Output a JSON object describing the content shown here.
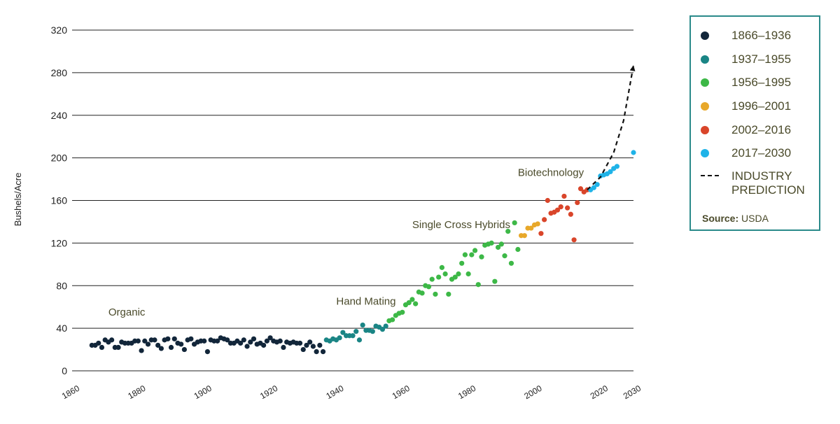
{
  "chart_data": {
    "type": "scatter",
    "ylabel": "Bushels/Acre",
    "xlabel": "",
    "xlim": [
      1860,
      2030
    ],
    "ylim": [
      0,
      320
    ],
    "x_ticks": [
      "1860",
      "1880",
      "1900",
      "1920",
      "1940",
      "1960",
      "1980",
      "2000",
      "2020",
      "2030"
    ],
    "y_ticks": [
      "0",
      "40",
      "80",
      "120",
      "160",
      "200",
      "240",
      "280",
      "320"
    ],
    "grid": "horizontal",
    "legend_position": "right",
    "source_label": "Source:",
    "source_value": "USDA",
    "annotations": [
      {
        "text": "Organic",
        "x": 1871,
        "y": 52
      },
      {
        "text": "Hand Mating",
        "x": 1940,
        "y": 62
      },
      {
        "text": "Single Cross Hybrids",
        "x": 1963,
        "y": 134
      },
      {
        "text": "Biotechnology",
        "x": 1995,
        "y": 183
      }
    ],
    "series": [
      {
        "name": "1866–1936",
        "color": "#12263a",
        "x": [
          1866,
          1867,
          1868,
          1869,
          1870,
          1871,
          1872,
          1873,
          1874,
          1875,
          1876,
          1877,
          1878,
          1879,
          1880,
          1881,
          1882,
          1883,
          1884,
          1885,
          1886,
          1887,
          1888,
          1889,
          1890,
          1891,
          1892,
          1893,
          1894,
          1895,
          1896,
          1897,
          1898,
          1899,
          1900,
          1901,
          1902,
          1903,
          1904,
          1905,
          1906,
          1907,
          1908,
          1909,
          1910,
          1911,
          1912,
          1913,
          1914,
          1915,
          1916,
          1917,
          1918,
          1919,
          1920,
          1921,
          1922,
          1923,
          1924,
          1925,
          1926,
          1927,
          1928,
          1929,
          1930,
          1931,
          1932,
          1933,
          1934,
          1935,
          1936
        ],
        "y": [
          24,
          24,
          26,
          22,
          29,
          27,
          29,
          22,
          22,
          27,
          26,
          26,
          26,
          28,
          28,
          19,
          28,
          25,
          29,
          29,
          24,
          21,
          29,
          30,
          22,
          30,
          26,
          25,
          20,
          29,
          30,
          25,
          27,
          28,
          28,
          18,
          29,
          28,
          28,
          31,
          30,
          29,
          26,
          26,
          28,
          26,
          29,
          23,
          27,
          30,
          25,
          26,
          24,
          28,
          31,
          28,
          27,
          28,
          22,
          27,
          26,
          27,
          26,
          26,
          20,
          24,
          27,
          23,
          18,
          24,
          18
        ]
      },
      {
        "name": "1937–1955",
        "color": "#1a8585",
        "x": [
          1937,
          1938,
          1939,
          1940,
          1941,
          1942,
          1943,
          1944,
          1945,
          1946,
          1947,
          1948,
          1949,
          1950,
          1951,
          1952,
          1953,
          1954,
          1955
        ],
        "y": [
          29,
          28,
          30,
          29,
          31,
          36,
          33,
          33,
          33,
          37,
          29,
          43,
          38,
          38,
          37,
          42,
          41,
          39,
          42
        ]
      },
      {
        "name": "1956–1995",
        "color": "#3db847",
        "x": [
          1956,
          1957,
          1958,
          1959,
          1960,
          1961,
          1962,
          1963,
          1964,
          1965,
          1966,
          1967,
          1968,
          1969,
          1970,
          1971,
          1972,
          1973,
          1974,
          1975,
          1976,
          1977,
          1978,
          1979,
          1980,
          1981,
          1982,
          1983,
          1984,
          1985,
          1986,
          1987,
          1988,
          1989,
          1990,
          1991,
          1992,
          1993,
          1994,
          1995
        ],
        "y": [
          47,
          48,
          52,
          54,
          55,
          62,
          64,
          67,
          63,
          74,
          73,
          80,
          79,
          86,
          72,
          88,
          97,
          91,
          72,
          86,
          88,
          91,
          101,
          109,
          91,
          109,
          113,
          81,
          107,
          118,
          119,
          120,
          84,
          116,
          119,
          108,
          131,
          101,
          139,
          114
        ]
      },
      {
        "name": "1996–2001",
        "color": "#e8a82a",
        "x": [
          1996,
          1997,
          1998,
          1999,
          2000,
          2001
        ],
        "y": [
          127,
          127,
          134,
          134,
          137,
          138
        ]
      },
      {
        "name": "2002–2016",
        "color": "#d9452a",
        "x": [
          2002,
          2003,
          2004,
          2005,
          2006,
          2007,
          2008,
          2009,
          2010,
          2011,
          2012,
          2013,
          2014,
          2015,
          2016
        ],
        "y": [
          129,
          142,
          160,
          148,
          149,
          151,
          154,
          164,
          153,
          147,
          123,
          158,
          171,
          168,
          170
        ]
      },
      {
        "name": "2017–2030",
        "color": "#1fb3e8",
        "x": [
          2017,
          2018,
          2019,
          2020,
          2021,
          2022,
          2023,
          2024,
          2025,
          2030
        ],
        "y": [
          170,
          172,
          175,
          183,
          184,
          185,
          187,
          190,
          192,
          205
        ]
      },
      {
        "name": "INDUSTRY PREDICTION",
        "style": "dashed",
        "color": "#111111",
        "x": [
          2016,
          2020,
          2024,
          2027,
          2030
        ],
        "y": [
          170,
          182,
          205,
          235,
          287
        ]
      }
    ]
  }
}
